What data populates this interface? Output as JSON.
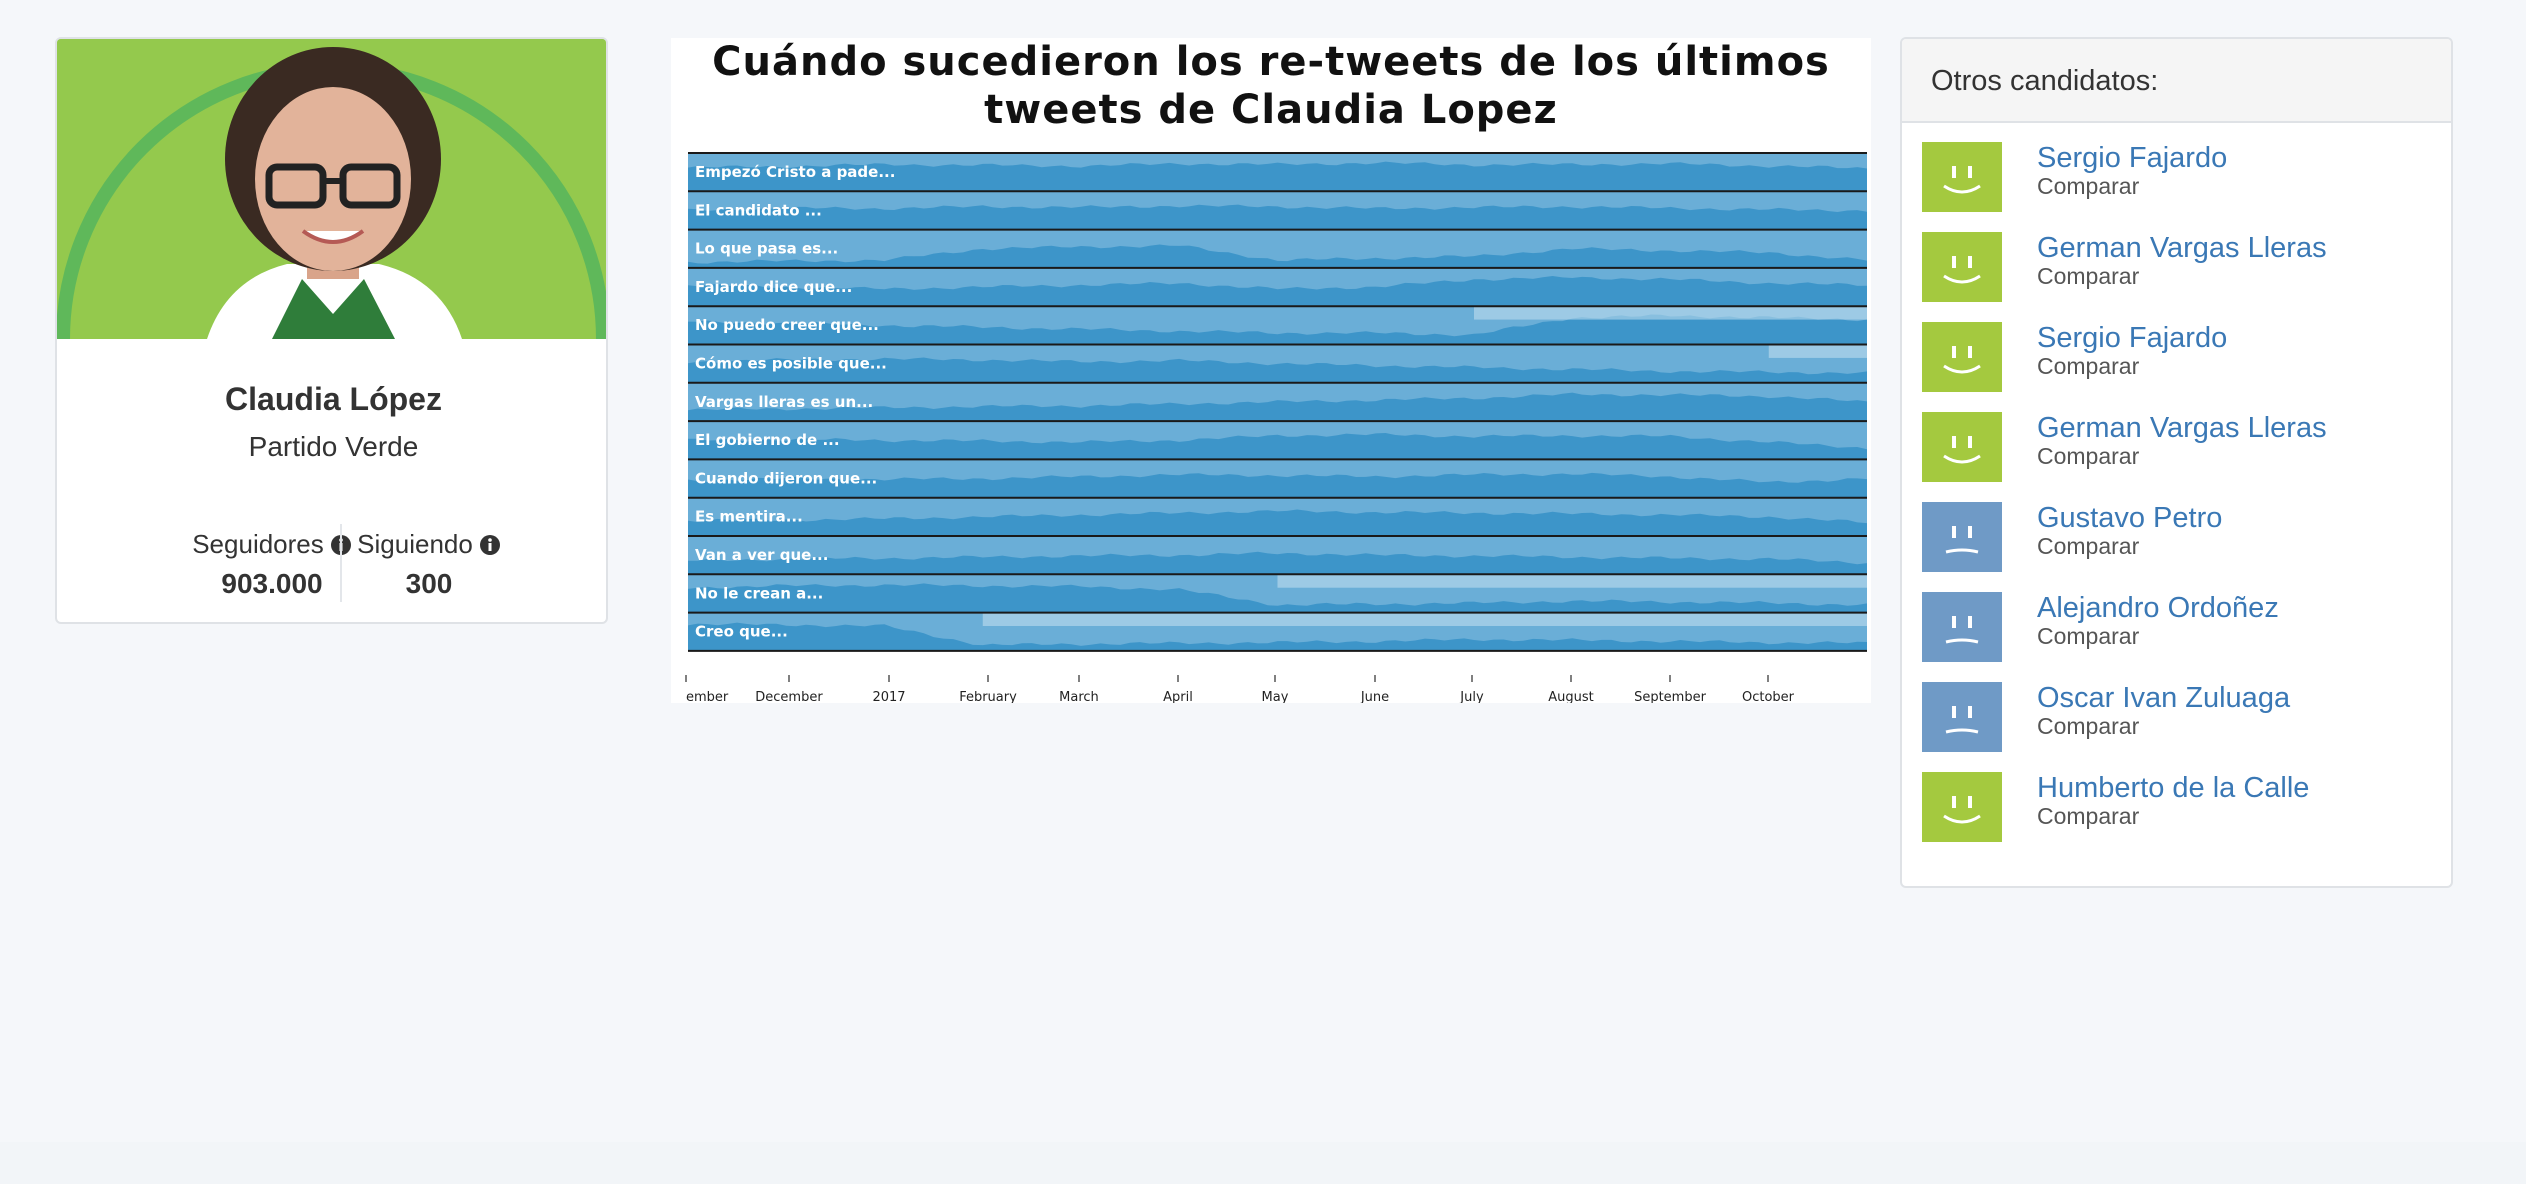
{
  "profile": {
    "name": "Claudia López",
    "party": "Partido Verde",
    "followers_label": "Seguidores",
    "followers_value": "903.000",
    "following_label": "Siguiendo",
    "following_value": "300",
    "photo_bg_color": "#94c94d"
  },
  "chart_data": {
    "type": "area",
    "title": "Cuándo sucedieron los re-tweets de los últimos tweets de Claudia Lopez",
    "xlabel": "",
    "ylabel": "",
    "x_ticks": [
      "ember",
      "December",
      "2017",
      "February",
      "March",
      "April",
      "May",
      "June",
      "July",
      "August",
      "September",
      "October"
    ],
    "series": [
      {
        "name": "Empezó Cristo a pade...",
        "values": [
          0.62,
          0.65,
          0.7,
          0.68,
          0.66,
          0.72,
          0.7,
          0.74,
          0.69,
          0.7,
          0.72,
          0.66,
          0.6
        ]
      },
      {
        "name": "El candidato ...",
        "values": [
          0.5,
          0.56,
          0.55,
          0.6,
          0.58,
          0.62,
          0.6,
          0.55,
          0.58,
          0.6,
          0.56,
          0.52,
          0.5
        ]
      },
      {
        "name": "Lo que pasa es...",
        "values": [
          0.15,
          0.18,
          0.2,
          0.5,
          0.55,
          0.58,
          0.2,
          0.25,
          0.3,
          0.5,
          0.45,
          0.4,
          0.2
        ]
      },
      {
        "name": "Fajardo dice que...",
        "values": [
          0.55,
          0.5,
          0.45,
          0.5,
          0.55,
          0.6,
          0.45,
          0.5,
          0.7,
          0.75,
          0.7,
          0.6,
          0.55
        ]
      },
      {
        "name": "No puedo creer que...",
        "values": [
          0.6,
          0.55,
          0.5,
          0.45,
          0.4,
          0.35,
          0.3,
          0.3,
          0.25,
          0.7,
          0.75,
          0.7,
          0.65
        ]
      },
      {
        "name": "Cómo es posible que...",
        "values": [
          0.55,
          0.6,
          0.62,
          0.6,
          0.55,
          0.58,
          0.5,
          0.45,
          0.4,
          0.35,
          0.3,
          0.28,
          0.25
        ]
      },
      {
        "name": "Vargas lleras es un...",
        "values": [
          0.3,
          0.32,
          0.35,
          0.38,
          0.4,
          0.45,
          0.5,
          0.55,
          0.6,
          0.7,
          0.68,
          0.65,
          0.5
        ]
      },
      {
        "name": "El gobierno de ...",
        "values": [
          0.5,
          0.52,
          0.5,
          0.48,
          0.45,
          0.5,
          0.62,
          0.65,
          0.6,
          0.62,
          0.6,
          0.45,
          0.3
        ]
      },
      {
        "name": "Cuando dijeron que...",
        "values": [
          0.45,
          0.5,
          0.48,
          0.5,
          0.55,
          0.6,
          0.58,
          0.55,
          0.6,
          0.62,
          0.55,
          0.4,
          0.5
        ]
      },
      {
        "name": "Es mentira...",
        "values": [
          0.4,
          0.42,
          0.45,
          0.5,
          0.55,
          0.6,
          0.65,
          0.62,
          0.6,
          0.58,
          0.55,
          0.5,
          0.35
        ]
      },
      {
        "name": "Van a ver que...",
        "values": [
          0.35,
          0.4,
          0.42,
          0.45,
          0.48,
          0.5,
          0.55,
          0.5,
          0.48,
          0.45,
          0.42,
          0.4,
          0.3
        ]
      },
      {
        "name": "No le crean a...",
        "values": [
          0.65,
          0.7,
          0.72,
          0.7,
          0.68,
          0.6,
          0.2,
          0.22,
          0.25,
          0.3,
          0.28,
          0.25,
          0.2
        ]
      },
      {
        "name": "Creo que...",
        "values": [
          0.7,
          0.68,
          0.65,
          0.15,
          0.18,
          0.2,
          0.22,
          0.25,
          0.3,
          0.28,
          0.25,
          0.22,
          0.2
        ]
      }
    ],
    "colors": [
      "#3d95c9",
      "#6aaed7",
      "#9fcbe6",
      "#c6e1f1"
    ]
  },
  "sidebar": {
    "title": "Otros candidatos:",
    "compare_label": "Comparar",
    "candidates": [
      {
        "name": "Sergio Fajardo",
        "compare": "Comparar",
        "mood": "happy",
        "color": "#a4c93f"
      },
      {
        "name": "German Vargas Lleras",
        "compare": "Comparar",
        "mood": "happy",
        "color": "#a4c93f"
      },
      {
        "name": "Sergio Fajardo",
        "compare": "Comparar",
        "mood": "happy",
        "color": "#a4c93f"
      },
      {
        "name": "German Vargas Lleras",
        "compare": "Comparar",
        "mood": "happy",
        "color": "#a4c93f"
      },
      {
        "name": "Gustavo Petro",
        "compare": "Comparar",
        "mood": "neutral",
        "color": "#6f9ac6"
      },
      {
        "name": "Alejandro Ordoñez",
        "compare": "Comparar",
        "mood": "neutral",
        "color": "#6f9ac6"
      },
      {
        "name": "Oscar Ivan Zuluaga",
        "compare": "Comparar",
        "mood": "neutral",
        "color": "#6f9ac6"
      },
      {
        "name": "Humberto de la Calle",
        "compare": "Comparar",
        "mood": "happy",
        "color": "#a4c93f"
      }
    ]
  }
}
